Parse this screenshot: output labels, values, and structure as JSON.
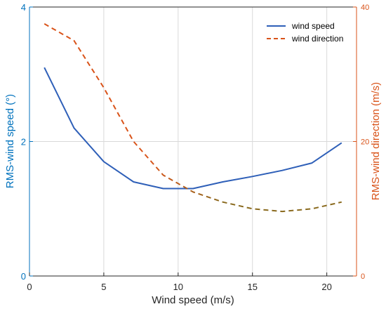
{
  "colors": {
    "left_axis": "#0072BD",
    "right_axis": "#D95319",
    "grid": "#d9d9d9",
    "axis_box": "#262626"
  },
  "chart_data": {
    "type": "line",
    "title": "",
    "xlabel": "Wind speed (m/s)",
    "ylabel_left": "RMS-wind speed (°)",
    "ylabel_right": "RMS-wind direction (m/s)",
    "xlim": [
      0,
      22
    ],
    "ylim_left": [
      0,
      4
    ],
    "ylim_right": [
      0,
      40
    ],
    "x_ticks": [
      0,
      5,
      10,
      15,
      20
    ],
    "x_tick_labels": [
      "0",
      "5",
      "10",
      "15",
      "20"
    ],
    "y_left_ticks": [
      0,
      2,
      4
    ],
    "y_left_tick_labels": [
      "0",
      "2",
      "4"
    ],
    "y_right_ticks": [
      0,
      20,
      40
    ],
    "y_right_tick_labels": [
      "0",
      "20",
      "40"
    ],
    "grid": true,
    "legend_position": "top-right",
    "series": [
      {
        "name": "wind speed",
        "axis": "left",
        "style": "solid",
        "color": "#2E5FB8",
        "x": [
          1,
          3,
          5,
          7,
          9,
          11,
          13,
          15,
          17,
          19,
          21
        ],
        "y": [
          3.1,
          2.2,
          1.7,
          1.4,
          1.3,
          1.3,
          1.4,
          1.48,
          1.57,
          1.68,
          1.98
        ]
      },
      {
        "name": "wind direction",
        "axis": "right",
        "style": "dashed",
        "color": "#D95319",
        "x": [
          1,
          3,
          5,
          7,
          9,
          11,
          13,
          15,
          17,
          19,
          21
        ],
        "y": [
          37.5,
          35,
          28,
          20,
          15,
          12.5,
          11,
          10,
          9.6,
          10,
          11
        ]
      }
    ]
  }
}
